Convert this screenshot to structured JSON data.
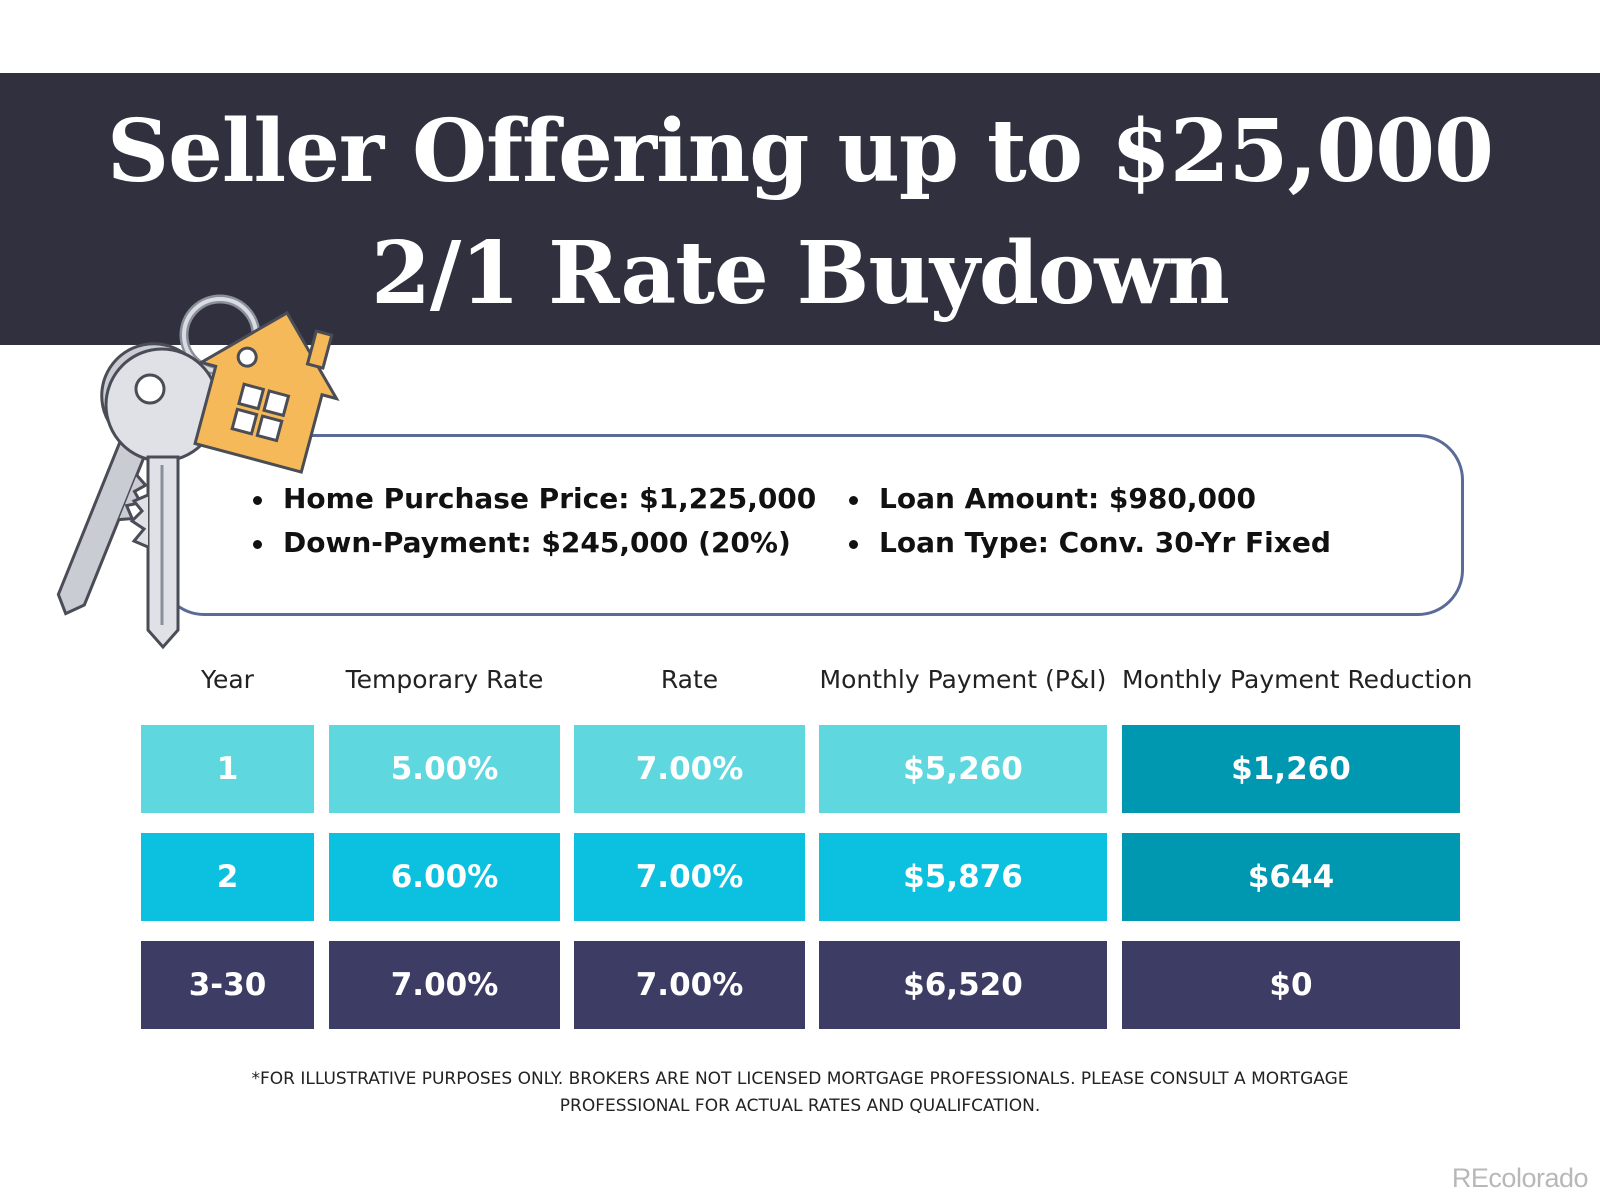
{
  "banner": {
    "title_line1": "Seller Offering up to $25,000",
    "title_line2": "2/1 Rate Buydown",
    "background_color": "#30303e"
  },
  "illustration": {
    "icon": "house-keys-icon"
  },
  "info": {
    "left": [
      "Home Purchase Price: $1,225,000",
      "Down-Payment: $245,000 (20%)"
    ],
    "right": [
      "Loan Amount: $980,000",
      "Loan Type: Conv. 30-Yr Fixed"
    ],
    "border_color": "#5b6b97"
  },
  "table": {
    "headers": [
      "Year",
      "Temporary Rate",
      "Rate",
      "Monthly Payment (P&I)",
      "Monthly Payment Reduction"
    ],
    "rows": [
      {
        "cells": [
          "1",
          "5.00%",
          "7.00%",
          "$5,260",
          "$1,260"
        ],
        "color": "#5fd7df",
        "reduction_color": "#0097b1"
      },
      {
        "cells": [
          "2",
          "6.00%",
          "7.00%",
          "$5,876",
          "$644"
        ],
        "color": "#0cc1e0",
        "reduction_color": "#0097b1"
      },
      {
        "cells": [
          "3-30",
          "7.00%",
          "7.00%",
          "$6,520",
          "$0"
        ],
        "color": "#3c3c64",
        "reduction_color": "#3c3c64"
      }
    ]
  },
  "disclaimer": {
    "line1": "*FOR ILLUSTRATIVE PURPOSES ONLY. BROKERS ARE NOT LICENSED MORTGAGE PROFESSIONALS. PLEASE CONSULT A MORTGAGE",
    "line2": "PROFESSIONAL FOR ACTUAL RATES AND QUALIFCATION."
  },
  "watermark": "REcolorado"
}
